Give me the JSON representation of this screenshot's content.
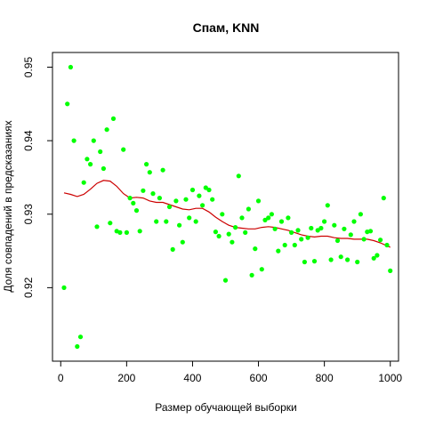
{
  "chart_data": {
    "type": "scatter",
    "title": "Спам, KNN",
    "xlabel": "Размер обучающей выборки",
    "ylabel": "Доля совпадений в предсказаниях",
    "xlim": [
      -25,
      1025
    ],
    "ylim": [
      0.91,
      0.952
    ],
    "x_ticks": [
      0,
      200,
      400,
      600,
      800,
      1000
    ],
    "x_tick_labels": [
      "0",
      "200",
      "400",
      "600",
      "800",
      "1000"
    ],
    "y_ticks": [
      0.92,
      0.93,
      0.94,
      0.95
    ],
    "y_tick_labels": [
      "0.92",
      "0.93",
      "0.94",
      "0.95"
    ],
    "grid": false,
    "legend": "none",
    "point_color": "#00ff00",
    "line_color": "#cc0000",
    "series": [
      {
        "kind": "points",
        "points": [
          [
            10,
            0.92
          ],
          [
            20,
            0.945
          ],
          [
            30,
            0.95
          ],
          [
            40,
            0.94
          ],
          [
            50,
            0.912
          ],
          [
            60,
            0.9133
          ],
          [
            70,
            0.9343
          ],
          [
            80,
            0.9375
          ],
          [
            90,
            0.9368
          ],
          [
            100,
            0.94
          ],
          [
            110,
            0.9283
          ],
          [
            120,
            0.9385
          ],
          [
            130,
            0.9362
          ],
          [
            140,
            0.9415
          ],
          [
            150,
            0.9288
          ],
          [
            160,
            0.943
          ],
          [
            170,
            0.9277
          ],
          [
            180,
            0.9275
          ],
          [
            190,
            0.9388
          ],
          [
            200,
            0.9275
          ],
          [
            210,
            0.9322
          ],
          [
            220,
            0.9315
          ],
          [
            230,
            0.9305
          ],
          [
            240,
            0.9277
          ],
          [
            250,
            0.9332
          ],
          [
            260,
            0.9368
          ],
          [
            270,
            0.9357
          ],
          [
            280,
            0.9328
          ],
          [
            290,
            0.929
          ],
          [
            300,
            0.9322
          ],
          [
            310,
            0.936
          ],
          [
            320,
            0.929
          ],
          [
            330,
            0.931
          ],
          [
            340,
            0.9252
          ],
          [
            350,
            0.9318
          ],
          [
            360,
            0.9285
          ],
          [
            370,
            0.9262
          ],
          [
            380,
            0.932
          ],
          [
            390,
            0.9295
          ],
          [
            400,
            0.9333
          ],
          [
            410,
            0.929
          ],
          [
            420,
            0.9325
          ],
          [
            430,
            0.9312
          ],
          [
            440,
            0.9336
          ],
          [
            450,
            0.9333
          ],
          [
            460,
            0.932
          ],
          [
            470,
            0.9276
          ],
          [
            480,
            0.927
          ],
          [
            490,
            0.93
          ],
          [
            500,
            0.921
          ],
          [
            510,
            0.9273
          ],
          [
            520,
            0.9262
          ],
          [
            530,
            0.9282
          ],
          [
            540,
            0.9352
          ],
          [
            550,
            0.9295
          ],
          [
            560,
            0.9275
          ],
          [
            570,
            0.9307
          ],
          [
            580,
            0.9217
          ],
          [
            590,
            0.9253
          ],
          [
            600,
            0.9318
          ],
          [
            610,
            0.9225
          ],
          [
            620,
            0.9292
          ],
          [
            630,
            0.9295
          ],
          [
            640,
            0.93
          ],
          [
            650,
            0.928
          ],
          [
            660,
            0.925
          ],
          [
            670,
            0.929
          ],
          [
            680,
            0.9258
          ],
          [
            690,
            0.9295
          ],
          [
            700,
            0.9275
          ],
          [
            710,
            0.9258
          ],
          [
            720,
            0.9278
          ],
          [
            730,
            0.9266
          ],
          [
            740,
            0.9235
          ],
          [
            750,
            0.9268
          ],
          [
            760,
            0.9281
          ],
          [
            770,
            0.9236
          ],
          [
            780,
            0.9278
          ],
          [
            790,
            0.9281
          ],
          [
            800,
            0.929
          ],
          [
            810,
            0.9312
          ],
          [
            820,
            0.9238
          ],
          [
            830,
            0.9285
          ],
          [
            840,
            0.9264
          ],
          [
            850,
            0.9242
          ],
          [
            860,
            0.928
          ],
          [
            870,
            0.9238
          ],
          [
            880,
            0.9272
          ],
          [
            890,
            0.929
          ],
          [
            900,
            0.9235
          ],
          [
            910,
            0.93
          ],
          [
            920,
            0.9266
          ],
          [
            930,
            0.9276
          ],
          [
            940,
            0.9277
          ],
          [
            950,
            0.924
          ],
          [
            960,
            0.9244
          ],
          [
            970,
            0.9265
          ],
          [
            980,
            0.9322
          ],
          [
            990,
            0.9258
          ],
          [
            1000,
            0.9223
          ]
        ]
      },
      {
        "kind": "line",
        "points": [
          [
            10,
            0.9329
          ],
          [
            30,
            0.9327
          ],
          [
            50,
            0.9324
          ],
          [
            70,
            0.9327
          ],
          [
            90,
            0.9334
          ],
          [
            110,
            0.9342
          ],
          [
            130,
            0.9346
          ],
          [
            150,
            0.9345
          ],
          [
            170,
            0.9338
          ],
          [
            190,
            0.9328
          ],
          [
            210,
            0.9322
          ],
          [
            230,
            0.9323
          ],
          [
            250,
            0.9322
          ],
          [
            270,
            0.9318
          ],
          [
            290,
            0.9316
          ],
          [
            310,
            0.9316
          ],
          [
            330,
            0.9313
          ],
          [
            350,
            0.931
          ],
          [
            370,
            0.9307
          ],
          [
            390,
            0.9306
          ],
          [
            410,
            0.9308
          ],
          [
            430,
            0.9308
          ],
          [
            450,
            0.9303
          ],
          [
            470,
            0.9296
          ],
          [
            490,
            0.929
          ],
          [
            510,
            0.9285
          ],
          [
            530,
            0.9282
          ],
          [
            550,
            0.9281
          ],
          [
            570,
            0.928
          ],
          [
            590,
            0.928
          ],
          [
            610,
            0.9282
          ],
          [
            630,
            0.9283
          ],
          [
            650,
            0.9282
          ],
          [
            670,
            0.928
          ],
          [
            690,
            0.9278
          ],
          [
            710,
            0.9275
          ],
          [
            730,
            0.9272
          ],
          [
            750,
            0.927
          ],
          [
            770,
            0.9269
          ],
          [
            790,
            0.927
          ],
          [
            810,
            0.927
          ],
          [
            830,
            0.9268
          ],
          [
            850,
            0.9267
          ],
          [
            870,
            0.9267
          ],
          [
            890,
            0.9266
          ],
          [
            910,
            0.9266
          ],
          [
            930,
            0.9266
          ],
          [
            950,
            0.9264
          ],
          [
            970,
            0.9261
          ],
          [
            990,
            0.9257
          ],
          [
            1000,
            0.9255
          ]
        ]
      }
    ]
  }
}
